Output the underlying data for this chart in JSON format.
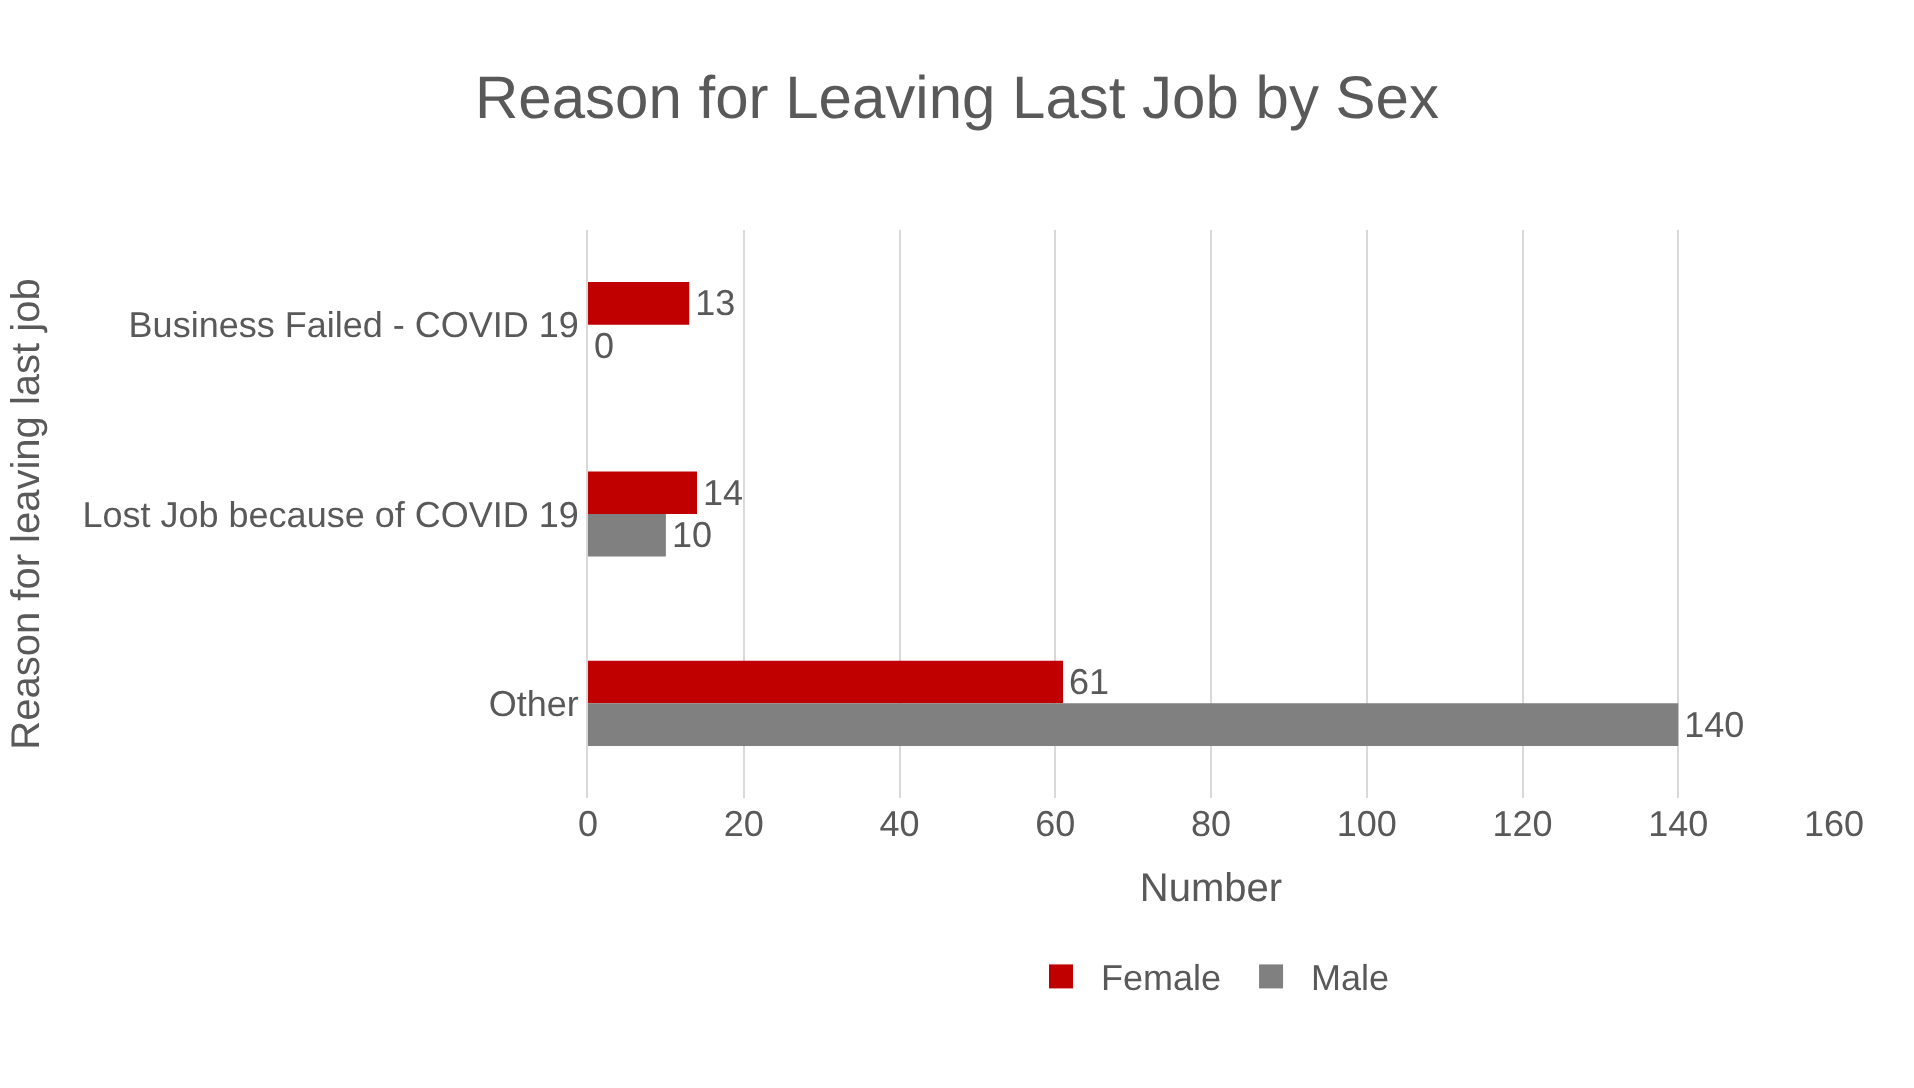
{
  "chart_data": {
    "type": "bar",
    "orientation": "horizontal",
    "title": "Reason for Leaving Last Job by Sex",
    "xlabel": "Number",
    "ylabel": "Reason for leaving last job",
    "categories": [
      "Business Failed - COVID 19",
      "Lost Job because of COVID 19",
      "Other"
    ],
    "series": [
      {
        "name": "Female",
        "color": "#c00000",
        "values": [
          13,
          14,
          61
        ]
      },
      {
        "name": "Male",
        "color": "#808080",
        "values": [
          0,
          10,
          140
        ]
      }
    ],
    "xlim": [
      0,
      160
    ],
    "xticks": [
      0,
      20,
      40,
      60,
      80,
      100,
      120,
      140,
      160
    ],
    "grid": "x",
    "legend": "bottom",
    "data_labels": true
  }
}
